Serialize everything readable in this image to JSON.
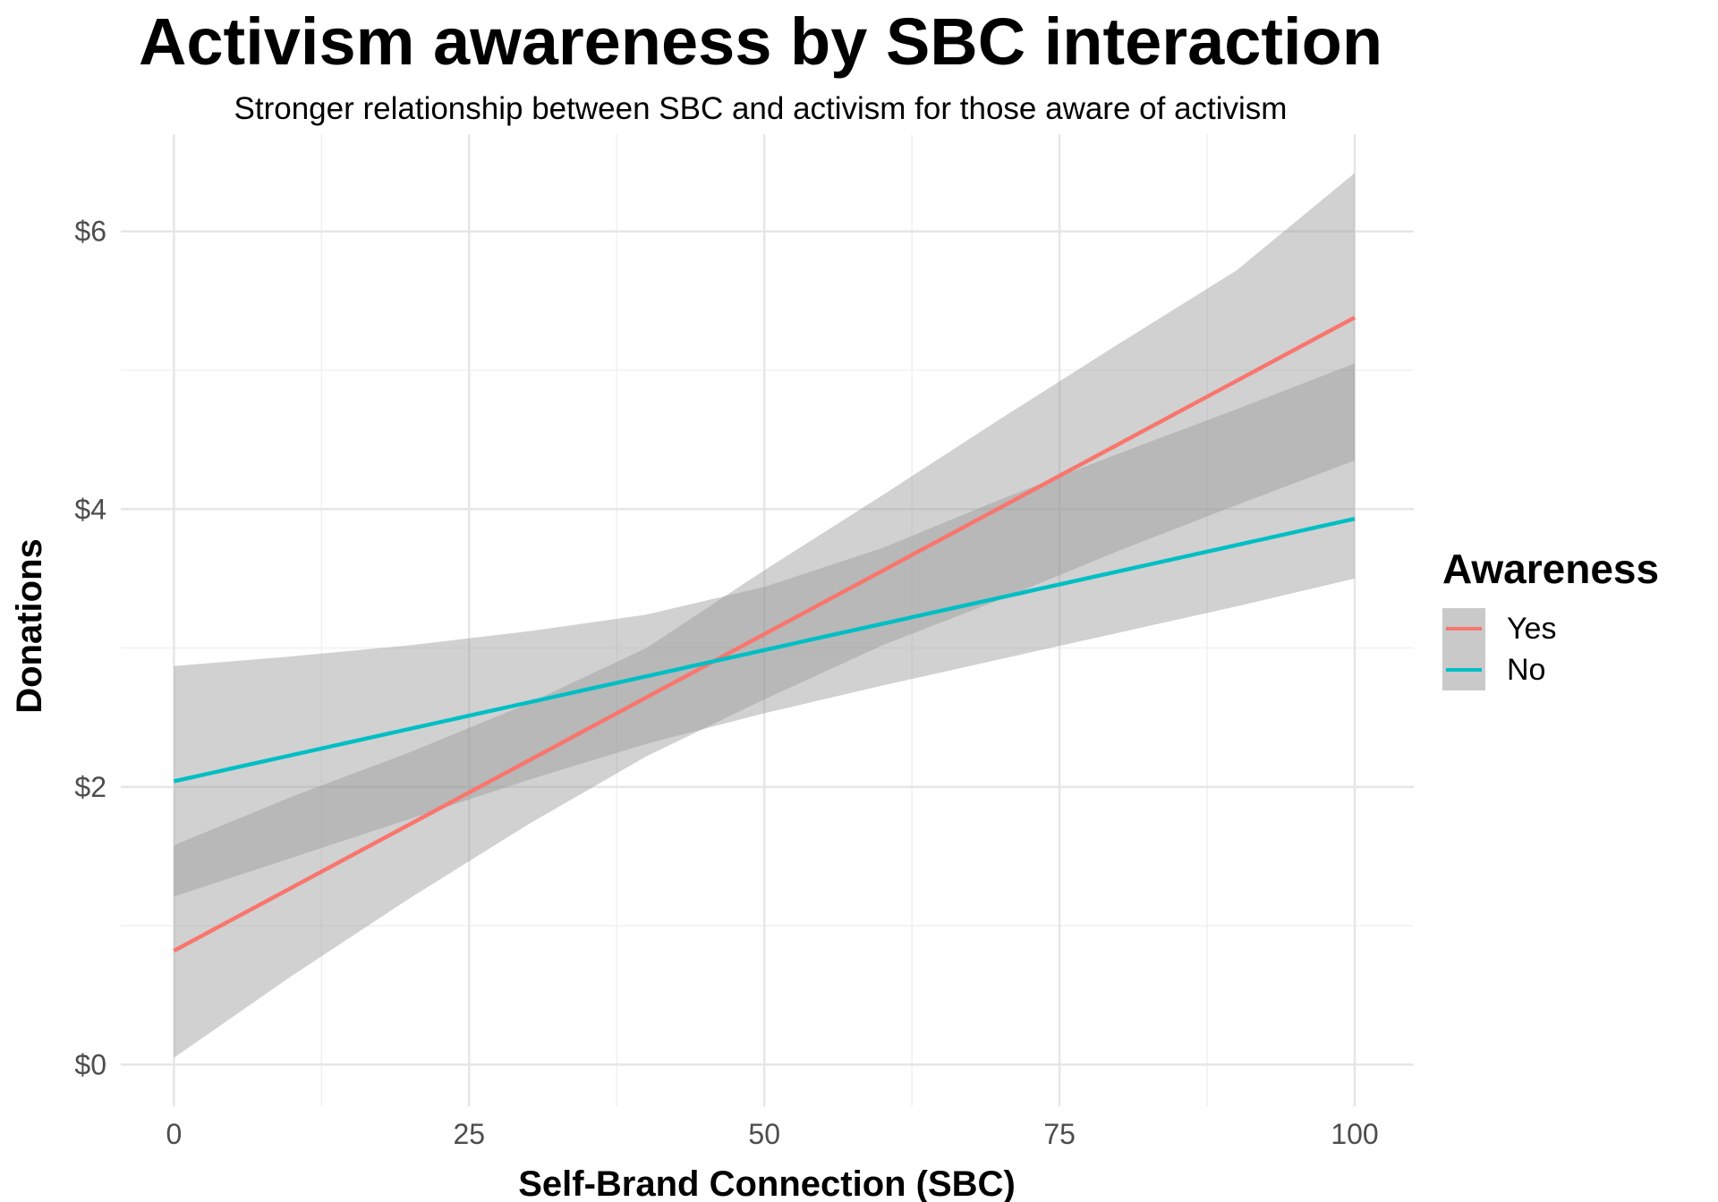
{
  "chart_data": {
    "type": "line",
    "title": "Activism awareness by SBC interaction",
    "subtitle": "Stronger relationship between SBC and activism for those aware of activism",
    "xlabel": "Self-Brand Connection (SBC)",
    "ylabel": "Donations",
    "xlim": [
      -4.5,
      105
    ],
    "ylim": [
      -0.3,
      6.7
    ],
    "x_ticks": [
      0,
      25,
      50,
      75,
      100
    ],
    "x_tick_labels": [
      "0",
      "25",
      "50",
      "75",
      "100"
    ],
    "y_ticks": [
      0,
      2,
      4,
      6
    ],
    "y_tick_labels": [
      "$0",
      "$2",
      "$4",
      "$6"
    ],
    "grid": true,
    "legend": {
      "title": "Awareness",
      "position": "right"
    },
    "series": [
      {
        "name": "Yes",
        "color": "#F8766D",
        "x": [
          0,
          100
        ],
        "y": [
          0.82,
          5.38
        ],
        "ci_x": [
          0,
          10,
          20,
          30,
          40,
          50,
          60,
          70,
          80,
          90,
          100
        ],
        "ci_lower": [
          0.05,
          0.64,
          1.2,
          1.73,
          2.22,
          2.63,
          3.02,
          3.35,
          3.7,
          4.03,
          4.35
        ],
        "ci_upper": [
          1.58,
          1.93,
          2.25,
          2.6,
          3.0,
          3.56,
          4.1,
          4.65,
          5.19,
          5.72,
          6.42
        ]
      },
      {
        "name": "No",
        "color": "#00BFC4",
        "x": [
          0,
          100
        ],
        "y": [
          2.04,
          3.93
        ],
        "ci_x": [
          0,
          10,
          20,
          30,
          40,
          50,
          60,
          70,
          80,
          90,
          100
        ],
        "ci_lower": [
          1.21,
          1.49,
          1.77,
          2.05,
          2.31,
          2.53,
          2.73,
          2.92,
          3.11,
          3.3,
          3.5
        ],
        "ci_upper": [
          2.87,
          2.94,
          3.02,
          3.12,
          3.24,
          3.44,
          3.72,
          4.07,
          4.4,
          4.72,
          5.05
        ]
      }
    ]
  }
}
